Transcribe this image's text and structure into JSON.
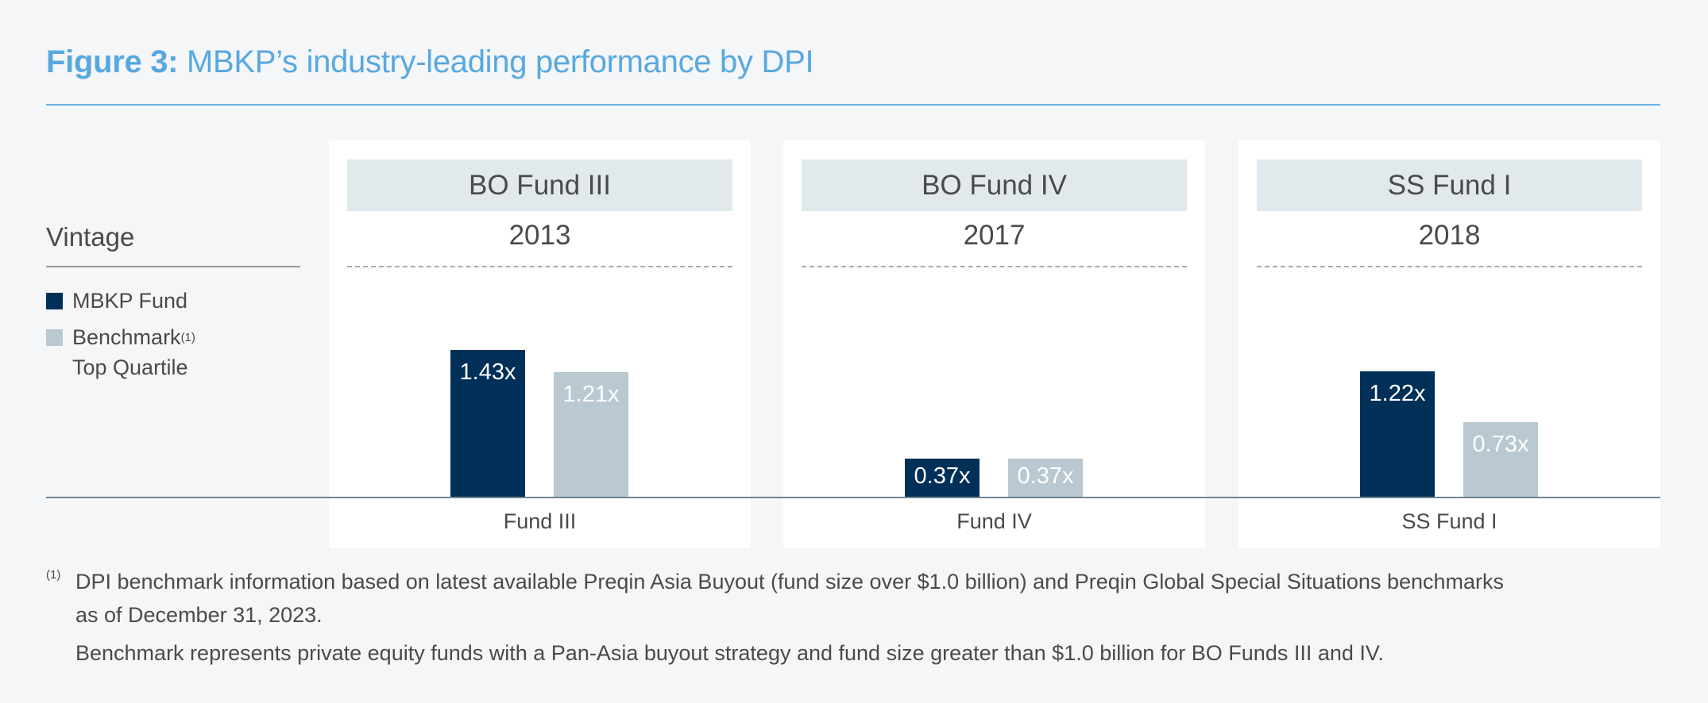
{
  "title": {
    "prefix": "Figure 3:",
    "text": " MBKP’s industry-leading performance by DPI"
  },
  "vintage_label": "Vintage",
  "legend": [
    {
      "label": "MBKP Fund",
      "sup": "",
      "color": "#003057"
    },
    {
      "label": "Benchmark",
      "sup": "(1)",
      "line2": "Top Quartile",
      "color": "#bac8d1"
    }
  ],
  "chart_data": {
    "type": "bar",
    "title": "Figure 3: MBKP’s industry-leading performance by DPI",
    "categories": [
      "Fund III",
      "Fund IV",
      "SS Fund I"
    ],
    "panels": [
      {
        "header": "BO Fund III",
        "vintage": "2013",
        "category": "Fund III"
      },
      {
        "header": "BO Fund IV",
        "vintage": "2017",
        "category": "Fund IV"
      },
      {
        "header": "SS Fund I",
        "vintage": "2018",
        "category": "SS Fund I"
      }
    ],
    "series": [
      {
        "name": "MBKP Fund",
        "values": [
          1.43,
          0.37,
          1.22
        ],
        "labels": [
          "1.43x",
          "0.37x",
          "1.22x"
        ],
        "color": "#003057"
      },
      {
        "name": "Benchmark Top Quartile",
        "values": [
          1.21,
          0.37,
          0.73
        ],
        "labels": [
          "1.21x",
          "0.37x",
          "0.73x"
        ],
        "color": "#bac8d1"
      }
    ],
    "ylim": [
      0,
      2.4
    ],
    "grid": false,
    "legend_position": "left"
  },
  "footnotes": {
    "marker": "(1)",
    "line1": "DPI benchmark information based on latest available Preqin Asia Buyout (fund size over $1.0 billion) and Preqin Global Special Situations benchmarks",
    "line2": "as of December 31, 2023.",
    "line3": "Benchmark represents private equity funds with a Pan-Asia buyout strategy and fund size greater than $1.0 billion for BO Funds III and IV."
  }
}
